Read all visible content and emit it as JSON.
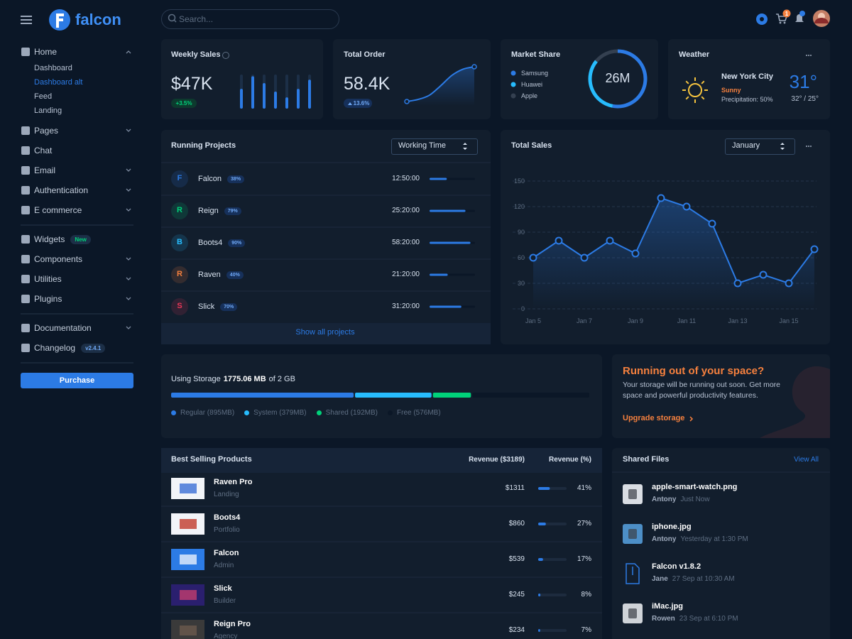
{
  "sidebar": {
    "brand": "falcon",
    "sections": [
      [
        {
          "label": "Home",
          "expandable": true,
          "open": true,
          "children": [
            {
              "label": "Dashboard"
            },
            {
              "label": "Dashboard alt",
              "active": true
            },
            {
              "label": "Feed"
            },
            {
              "label": "Landing"
            }
          ]
        },
        {
          "label": "Pages",
          "expandable": true
        },
        {
          "label": "Chat"
        },
        {
          "label": "Email",
          "expandable": true
        },
        {
          "label": "Authentication",
          "expandable": true
        },
        {
          "label": "E commerce",
          "expandable": true
        }
      ],
      [
        {
          "label": "Widgets",
          "badge": "New",
          "badge_color": "#00d27a"
        },
        {
          "label": "Components",
          "expandable": true
        },
        {
          "label": "Utilities",
          "expandable": true
        },
        {
          "label": "Plugins",
          "expandable": true
        }
      ],
      [
        {
          "label": "Documentation",
          "expandable": true
        },
        {
          "label": "Changelog",
          "badge": "v2.4.1",
          "badge_color": "#6fa8f5"
        }
      ]
    ],
    "button": "Purchase"
  },
  "topbar": {
    "search_placeholder": "Search...",
    "cart_count": 1
  },
  "weekly_sales": {
    "title": "Weekly Sales",
    "value": "$47K",
    "change": "+3.5%",
    "chart": {
      "type": "bar",
      "values": [
        58,
        95,
        75,
        50,
        33,
        58,
        85
      ],
      "ylim": [
        0,
        100
      ],
      "color": "#2c7be5"
    }
  },
  "total_order": {
    "title": "Total Order",
    "value": "58.4K",
    "change": "13.6%",
    "chart": {
      "type": "line",
      "values": [
        0,
        6,
        18,
        45,
        75,
        93,
        100
      ],
      "ylim": [
        0,
        100
      ],
      "color": "#2c7be5"
    }
  },
  "market_share": {
    "title": "Market Share",
    "total": "26M",
    "chart": {
      "type": "pie",
      "series": [
        {
          "name": "Samsung",
          "value": 53,
          "color": "#2c7be5"
        },
        {
          "name": "Huawei",
          "value": 33,
          "color": "#27bcfd"
        },
        {
          "name": "Apple",
          "value": 14,
          "color": "#344050"
        }
      ]
    }
  },
  "weather": {
    "title": "Weather",
    "city": "New York City",
    "condition": "Sunny",
    "precipitation": "Precipitation: 50%",
    "temperature": "31°",
    "range": "32° / 25°"
  },
  "running_projects": {
    "title": "Running Projects",
    "filter": "Working Time",
    "rows": [
      {
        "initial": "F",
        "name": "Falcon",
        "progress": 38,
        "progress_label": "38%",
        "time": "12:50:00",
        "color": "#2c7be5"
      },
      {
        "initial": "R",
        "name": "Reign",
        "progress": 79,
        "progress_label": "79%",
        "time": "25:20:00",
        "color": "#00d27a"
      },
      {
        "initial": "B",
        "name": "Boots4",
        "progress": 90,
        "progress_label": "90%",
        "time": "58:20:00",
        "color": "#27bcfd"
      },
      {
        "initial": "R",
        "name": "Raven",
        "progress": 40,
        "progress_label": "40%",
        "time": "21:20:00",
        "color": "#f5803e"
      },
      {
        "initial": "S",
        "name": "Slick",
        "progress": 70,
        "progress_label": "70%",
        "time": "31:20:00",
        "color": "#e63757"
      }
    ],
    "footer": "Show all projects"
  },
  "total_sales": {
    "title": "Total Sales",
    "filter": "January",
    "chart": {
      "type": "line",
      "categories": [
        "Jan 5",
        null,
        "Jan 7",
        null,
        "Jan 9",
        null,
        "Jan 11",
        null,
        "Jan 13",
        null,
        "Jan 15",
        null
      ],
      "values": [
        60,
        80,
        60,
        80,
        65,
        130,
        120,
        100,
        30,
        40,
        30,
        70
      ],
      "ylim": [
        0,
        150
      ],
      "yticks": [
        0,
        30,
        60,
        90,
        120,
        150
      ],
      "grid": true,
      "color": "#2c7be5"
    }
  },
  "storage": {
    "label": "Using Storage",
    "used": "1775.06 MB",
    "capacity": "of 2 GB",
    "segments": [
      {
        "label": "Regular (895MB)",
        "value": 895,
        "color": "#2c7be5"
      },
      {
        "label": "System (379MB)",
        "value": 379,
        "color": "#27bcfd"
      },
      {
        "label": "Shared (192MB)",
        "value": 192,
        "color": "#00d27a"
      },
      {
        "label": "Free (576MB)",
        "value": 576,
        "color": "#0b1727"
      }
    ]
  },
  "promo": {
    "title": "Running out of your space?",
    "text": "Your storage will be running out soon. Get more space and powerful productivity features.",
    "link": "Upgrade storage"
  },
  "best_selling": {
    "title": "Best Selling Products",
    "columns": [
      "Revenue ($3189)",
      "Revenue (%)"
    ],
    "rows": [
      {
        "name": "Raven Pro",
        "category": "Landing",
        "revenue": "$1311",
        "share": 41,
        "share_label": "41%"
      },
      {
        "name": "Boots4",
        "category": "Portfolio",
        "revenue": "$860",
        "share": 27,
        "share_label": "27%"
      },
      {
        "name": "Falcon",
        "category": "Admin",
        "revenue": "$539",
        "share": 17,
        "share_label": "17%"
      },
      {
        "name": "Slick",
        "category": "Builder",
        "revenue": "$245",
        "share": 8,
        "share_label": "8%"
      },
      {
        "name": "Reign Pro",
        "category": "Agency",
        "revenue": "$234",
        "share": 7,
        "share_label": "7%"
      }
    ]
  },
  "shared_files": {
    "title": "Shared Files",
    "link": "View All",
    "files": [
      {
        "name": "apple-smart-watch.png",
        "user": "Antony",
        "time": "Just Now"
      },
      {
        "name": "iphone.jpg",
        "user": "Antony",
        "time": "Yesterday at 1:30 PM"
      },
      {
        "name": "Falcon v1.8.2",
        "user": "Jane",
        "time": "27 Sep at 10:30 AM"
      },
      {
        "name": "iMac.jpg",
        "user": "Rowen",
        "time": "23 Sep at 6:10 PM"
      }
    ]
  }
}
